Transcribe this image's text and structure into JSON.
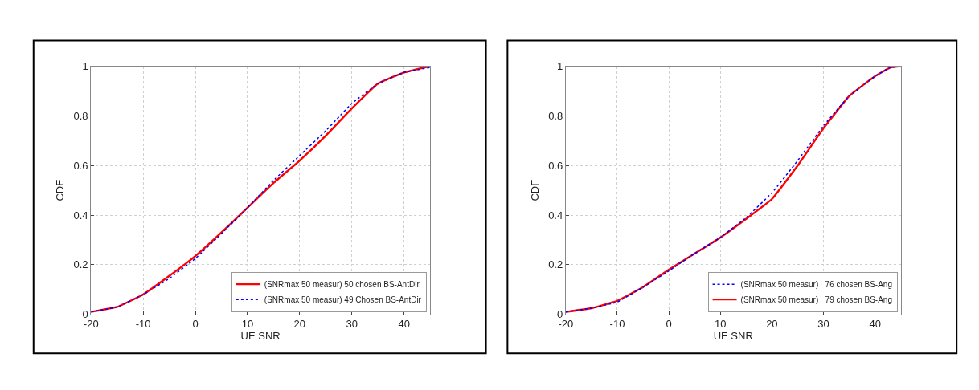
{
  "chart_data": [
    {
      "type": "line",
      "xlabel": "UE SNR",
      "ylabel": "CDF",
      "xlim": [
        -20,
        45
      ],
      "xticks": [
        -20,
        -10,
        0,
        10,
        20,
        30,
        40
      ],
      "ylim": [
        0,
        1
      ],
      "yticks": [
        0,
        0.2,
        0.4,
        0.6,
        0.8,
        1
      ],
      "grid": true,
      "legend": "bottom right",
      "series": [
        {
          "name": "(SNRmax 50 measur) 50 chosen BS-AntDir",
          "color": "#ff0000",
          "line_style": "solid",
          "x": [
            -20,
            -15,
            -10,
            -5,
            0,
            5,
            10,
            15,
            20,
            25,
            30,
            35,
            40,
            45
          ],
          "values": [
            0.01,
            0.03,
            0.08,
            0.155,
            0.235,
            0.33,
            0.43,
            0.53,
            0.62,
            0.72,
            0.83,
            0.93,
            0.975,
            1.0
          ]
        },
        {
          "name": "(SNRmax 50 measur) 49 Chosen BS-AntDir",
          "color": "#0000ff",
          "line_style": "dotted",
          "x": [
            -20,
            -15,
            -10,
            -5,
            0,
            5,
            10,
            15,
            20,
            25,
            30,
            35,
            40,
            45
          ],
          "values": [
            0.01,
            0.03,
            0.08,
            0.145,
            0.225,
            0.325,
            0.43,
            0.54,
            0.64,
            0.74,
            0.85,
            0.93,
            0.975,
            0.995
          ]
        }
      ]
    },
    {
      "type": "line",
      "xlabel": "UE SNR",
      "ylabel": "CDF",
      "xlim": [
        -20,
        45
      ],
      "xticks": [
        -20,
        -10,
        0,
        10,
        20,
        30,
        40
      ],
      "ylim": [
        0,
        1
      ],
      "yticks": [
        0,
        0.2,
        0.4,
        0.6,
        0.8,
        1
      ],
      "grid": true,
      "legend": "bottom right",
      "series": [
        {
          "name": "(SNRmax 50 measur)   76 chosen BS-Ang",
          "color": "#0000ff",
          "line_style": "dotted",
          "x": [
            -20,
            -15,
            -10,
            -5,
            0,
            5,
            10,
            15,
            20,
            25,
            30,
            35,
            40,
            43,
            45
          ],
          "values": [
            0.01,
            0.025,
            0.05,
            0.11,
            0.175,
            0.245,
            0.31,
            0.39,
            0.49,
            0.62,
            0.76,
            0.88,
            0.96,
            0.995,
            1.0
          ]
        },
        {
          "name": "(SNRmax 50 measur)   79 chosen BS-Ang",
          "color": "#ff0000",
          "line_style": "solid",
          "x": [
            -20,
            -15,
            -10,
            -5,
            0,
            5,
            10,
            15,
            20,
            25,
            30,
            35,
            40,
            43,
            45
          ],
          "values": [
            0.01,
            0.025,
            0.055,
            0.11,
            0.18,
            0.245,
            0.31,
            0.385,
            0.465,
            0.6,
            0.75,
            0.88,
            0.96,
            0.995,
            1.0
          ]
        }
      ]
    }
  ]
}
